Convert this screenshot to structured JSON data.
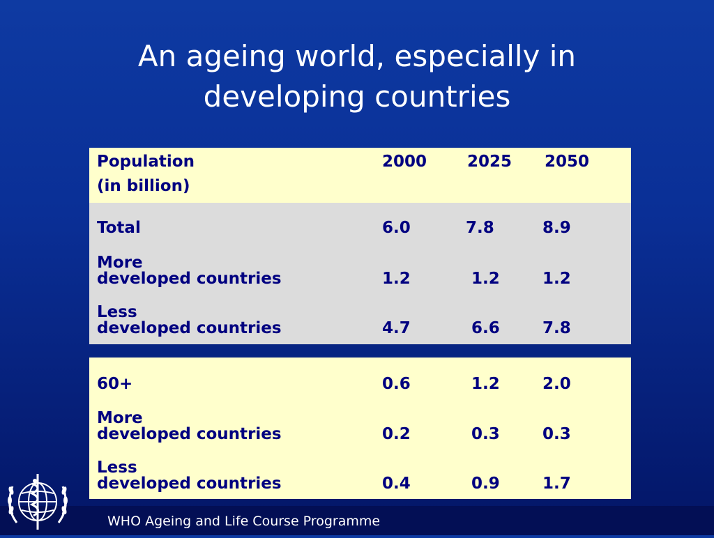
{
  "title": {
    "line1": "An ageing world, especially in",
    "line2": "developing countries"
  },
  "table": {
    "header": {
      "label_line1": "Population",
      "label_line2": "(in billion)",
      "years": [
        "2000",
        "2025",
        "2050"
      ]
    },
    "total_rows": [
      {
        "label_line1": "Total",
        "label_line2": "",
        "values": [
          "6.0",
          "7.8",
          "8.9"
        ]
      },
      {
        "label_line1": "More",
        "label_line2": "developed countries",
        "values": [
          "1.2",
          "1.2",
          "1.2"
        ]
      },
      {
        "label_line1": "Less",
        "label_line2": "developed countries",
        "values": [
          "4.7",
          "6.6",
          "7.8"
        ]
      }
    ],
    "sixty_plus_rows": [
      {
        "label_line1": "60+",
        "label_line2": "",
        "values": [
          "0.6",
          "1.2",
          "2.0"
        ]
      },
      {
        "label_line1": "More",
        "label_line2": "developed countries",
        "values": [
          "0.2",
          "0.3",
          "0.3"
        ]
      },
      {
        "label_line1": "Less",
        "label_line2": "developed countries",
        "values": [
          "0.4",
          "0.9",
          "1.7"
        ]
      }
    ]
  },
  "footer": {
    "text": "WHO Ageing and Life Course Programme"
  },
  "logo": {
    "icon": "who-emblem-icon"
  },
  "colors": {
    "background": "#0a2f96",
    "header_band": "#ffffcc",
    "grey_band": "#dcdcdc",
    "table_text": "#000080",
    "footer_bar": "#030f55"
  }
}
